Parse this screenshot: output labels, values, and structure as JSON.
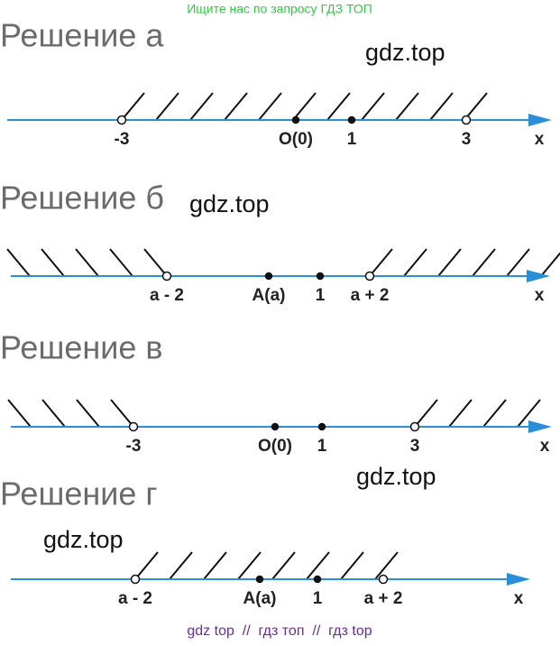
{
  "header": {
    "text": "Ищите нас по запросу ГДЗ ТОП"
  },
  "sections": [
    {
      "title": "Решение а",
      "watermark": "gdz.top",
      "points": [
        {
          "label": "-3"
        },
        {
          "label": "O(0)"
        },
        {
          "label": "1"
        },
        {
          "label": "3"
        }
      ],
      "axis_label": "x"
    },
    {
      "title": "Решение б",
      "watermark": "gdz.top",
      "points": [
        {
          "label": "a - 2"
        },
        {
          "label": "A(a)"
        },
        {
          "label": "1"
        },
        {
          "label": "a + 2"
        }
      ],
      "axis_label": "x"
    },
    {
      "title": "Решение в",
      "watermark": "gdz.top",
      "points": [
        {
          "label": "-3"
        },
        {
          "label": "O(0)"
        },
        {
          "label": "1"
        },
        {
          "label": "3"
        }
      ],
      "axis_label": "x"
    },
    {
      "title": "Решение г",
      "watermark": "gdz.top",
      "points": [
        {
          "label": "a - 2"
        },
        {
          "label": "A(a)"
        },
        {
          "label": "1"
        },
        {
          "label": "a + 2"
        }
      ],
      "axis_label": "x"
    }
  ],
  "footer": {
    "text": "gdz top  //  гдз топ  //  гдз top"
  }
}
